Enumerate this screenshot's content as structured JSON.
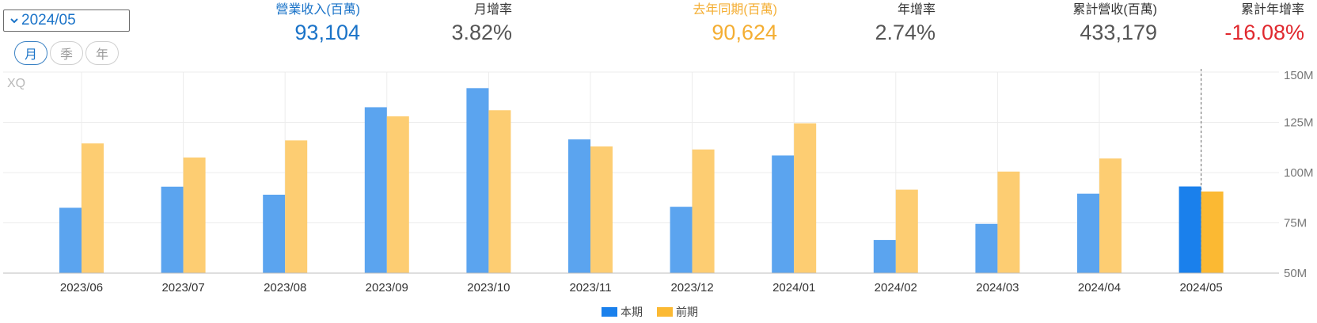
{
  "header": {
    "period_select": "2024/05",
    "view_tabs": [
      {
        "label": "月",
        "active": true
      },
      {
        "label": "季",
        "active": false
      },
      {
        "label": "年",
        "active": false
      }
    ]
  },
  "stats": [
    {
      "label": "營業收入(百萬)",
      "value": "93,104",
      "color": "blue"
    },
    {
      "label": "月增率",
      "value": "3.82%",
      "color": "gray"
    },
    {
      "label": "去年同期(百萬)",
      "value": "90,624",
      "color": "orange"
    },
    {
      "label": "年增率",
      "value": "2.74%",
      "color": "gray"
    },
    {
      "label": "累計營收(百萬)",
      "value": "433,179",
      "color": "gray"
    },
    {
      "label": "累計年增率",
      "value": "-16.08%",
      "color": "red"
    }
  ],
  "colors": {
    "current": "#5ba4ef",
    "current_highlight": "#1a80ec",
    "previous": "#fdcd72",
    "previous_highlight": "#fbb933",
    "blue_text": "#1a73c8",
    "orange_text": "#f4ae33",
    "red_text": "#e0282e"
  },
  "chart_data": {
    "type": "bar",
    "watermark": "XQ",
    "categories": [
      "2023/06",
      "2023/07",
      "2023/08",
      "2023/09",
      "2023/10",
      "2023/11",
      "2023/12",
      "2024/01",
      "2024/02",
      "2024/03",
      "2024/04",
      "2024/05"
    ],
    "series": [
      {
        "name": "本期",
        "values": [
          82.5,
          93,
          89,
          132.5,
          142,
          116.5,
          83,
          108.5,
          66.5,
          74.5,
          89.5,
          93.1
        ]
      },
      {
        "name": "前期",
        "values": [
          114.5,
          107.5,
          116,
          128,
          131,
          113,
          111.5,
          124.5,
          91.5,
          100.5,
          107,
          90.6
        ]
      }
    ],
    "y_ticks": [
      "50M",
      "75M",
      "100M",
      "125M",
      "150M"
    ],
    "ylim": [
      50,
      150
    ],
    "y_axis_position": "right",
    "highlight_category": "2024/05",
    "legend_position": "bottom-center",
    "grid": true
  }
}
